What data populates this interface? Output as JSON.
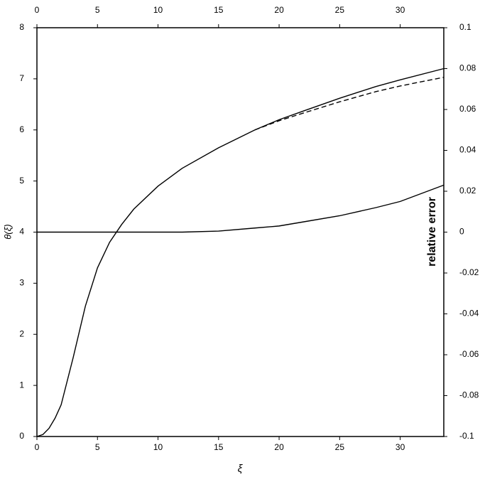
{
  "chart_data": {
    "type": "line",
    "xlabel": "ξ",
    "ylabel": "θ(ξ)",
    "y2label": "relative error",
    "x": [
      0,
      0.5,
      1,
      1.5,
      2,
      3,
      4,
      5,
      6,
      7,
      8,
      10,
      12,
      15,
      18,
      20,
      22,
      25,
      28,
      30,
      33.6
    ],
    "series": [
      {
        "color": "#000000",
        "dashed": false,
        "values": [
          0,
          0.04,
          0.16,
          0.36,
          0.62,
          1.55,
          2.55,
          3.3,
          3.8,
          4.15,
          4.45,
          4.9,
          5.25,
          5.65,
          6.0,
          6.2,
          6.37,
          6.62,
          6.85,
          6.98,
          7.2
        ]
      },
      {
        "color": "#000000",
        "dashed": true,
        "values": [
          null,
          null,
          null,
          null,
          null,
          null,
          null,
          null,
          null,
          null,
          null,
          null,
          null,
          null,
          6.0,
          6.18,
          6.33,
          6.55,
          6.75,
          6.86,
          7.03
        ]
      },
      {
        "color": "#000000",
        "dashed": false,
        "axis": "y2",
        "values": [
          0,
          0,
          0,
          0,
          0,
          0,
          0,
          0,
          0,
          0,
          0,
          0,
          0,
          0.0005,
          0.002,
          0.003,
          0.005,
          0.008,
          0.012,
          0.015,
          0.023
        ]
      }
    ],
    "xlim": [
      0,
      33.6
    ],
    "xticks": [
      0,
      5,
      10,
      15,
      20,
      25,
      30
    ],
    "top_xticks": [
      0,
      5,
      10,
      15,
      20,
      25,
      30
    ],
    "ylim": [
      0,
      8
    ],
    "yticks": [
      0,
      1,
      2,
      3,
      4,
      5,
      6,
      7,
      8
    ],
    "y2lim": [
      -0.1,
      0.1
    ],
    "y2ticks": [
      -0.1,
      -0.08,
      -0.06,
      -0.04,
      -0.02,
      0,
      0.02,
      0.04,
      0.06,
      0.08,
      0.1
    ],
    "grid": false
  }
}
